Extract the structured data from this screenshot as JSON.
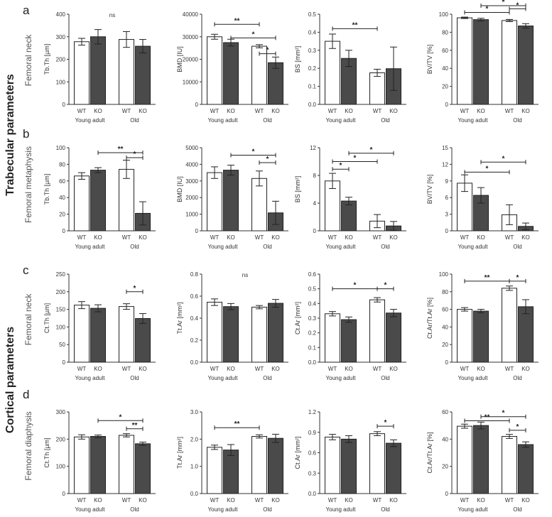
{
  "figure": {
    "group_labels": {
      "trabecular": "Trabecular parameters",
      "cortical": "Cortical parameters"
    },
    "panels": [
      {
        "letter": "a",
        "site": "Femoral neck"
      },
      {
        "letter": "b",
        "site": "Femoral metaphysis"
      },
      {
        "letter": "c",
        "site": "Femoral neck"
      },
      {
        "letter": "d",
        "site": "Femoral diaphysis"
      }
    ],
    "categories": [
      "WT",
      "KO",
      "WT",
      "KO"
    ],
    "age_groups": [
      "Young adult",
      "Old"
    ],
    "colors": {
      "wt": "#ffffff",
      "ko": "#4a4a4a",
      "axis": "#333333",
      "text": "#333333"
    }
  },
  "chart_data": [
    {
      "id": "a1",
      "type": "bar",
      "ylabel": "Tb.Th [µm]",
      "ylim": [
        0,
        400
      ],
      "yticks": [
        "0",
        "100",
        "200",
        "300",
        "400"
      ],
      "values": [
        278,
        300,
        288,
        258
      ],
      "errors": [
        15,
        32,
        35,
        30
      ],
      "annotations": [],
      "top_note": "ns"
    },
    {
      "id": "a2",
      "type": "bar",
      "ylabel": "BMD [IU]",
      "ylim": [
        0,
        40000
      ],
      "yticks": [
        "0",
        "10000",
        "20000",
        "30000",
        "40000"
      ],
      "values": [
        30000,
        27400,
        25800,
        18500
      ],
      "errors": [
        1100,
        1500,
        700,
        2500
      ],
      "annotations": [
        {
          "from": 0,
          "to": 2,
          "label": "**",
          "y": 35500
        },
        {
          "from": 1,
          "to": 3,
          "label": "*",
          "y": 29500
        },
        {
          "from": 2,
          "to": 3,
          "label": "*",
          "y": 22500
        }
      ]
    },
    {
      "id": "a3",
      "type": "bar",
      "ylabel": "BS [mm²]",
      "ylim": [
        0,
        0.5
      ],
      "yticks": [
        "0.0",
        "0.1",
        "0.2",
        "0.3",
        "0.4",
        "0.5"
      ],
      "values": [
        0.35,
        0.255,
        0.175,
        0.198
      ],
      "errors": [
        0.04,
        0.045,
        0.02,
        0.12
      ],
      "annotations": [
        {
          "from": 0,
          "to": 2,
          "label": "**",
          "y": 0.42
        }
      ]
    },
    {
      "id": "a4",
      "type": "bar",
      "ylabel": "BV/TV [%]",
      "ylim": [
        0,
        100
      ],
      "yticks": [
        "0",
        "20",
        "40",
        "60",
        "80",
        "100"
      ],
      "values": [
        96,
        94,
        93,
        87
      ],
      "errors": [
        0.8,
        1.5,
        1.2,
        2.5
      ],
      "annotations": [
        {
          "from": 0,
          "to": 2,
          "label": "*",
          "y": 102
        },
        {
          "from": 1,
          "to": 3,
          "label": "*",
          "y": 111
        },
        {
          "from": 2,
          "to": 3,
          "label": "*",
          "y": 106
        }
      ]
    },
    {
      "id": "b1",
      "type": "bar",
      "ylabel": "Tb.Th [µm]",
      "ylim": [
        0,
        100
      ],
      "yticks": [
        "0",
        "20",
        "40",
        "60",
        "80",
        "100"
      ],
      "values": [
        66,
        73,
        74,
        21
      ],
      "errors": [
        4,
        3,
        11,
        14
      ],
      "annotations": [
        {
          "from": 1,
          "to": 3,
          "label": "**",
          "y": 94
        },
        {
          "from": 2,
          "to": 3,
          "label": "*",
          "y": 88
        }
      ]
    },
    {
      "id": "b2",
      "type": "bar",
      "ylabel": "BMD [IU]",
      "ylim": [
        0,
        5000
      ],
      "yticks": [
        "0",
        "1000",
        "2000",
        "3000",
        "4000",
        "5000"
      ],
      "values": [
        3500,
        3650,
        3150,
        1080
      ],
      "errors": [
        350,
        300,
        450,
        700
      ],
      "annotations": [
        {
          "from": 1,
          "to": 3,
          "label": "*",
          "y": 4550
        },
        {
          "from": 2,
          "to": 3,
          "label": "*",
          "y": 4100
        }
      ]
    },
    {
      "id": "b3",
      "type": "bar",
      "ylabel": "BS [mm²]",
      "ylim": [
        0,
        12
      ],
      "yticks": [
        "0",
        "4",
        "8",
        "12"
      ],
      "values": [
        7.2,
        4.3,
        1.4,
        0.7
      ],
      "errors": [
        1.1,
        0.55,
        0.95,
        0.65
      ],
      "annotations": [
        {
          "from": 1,
          "to": 3,
          "label": "*",
          "y": 11.2
        },
        {
          "from": 0,
          "to": 2,
          "label": "*",
          "y": 10.0
        },
        {
          "from": 0,
          "to": 1,
          "label": "*",
          "y": 8.9
        }
      ]
    },
    {
      "id": "b4",
      "type": "bar",
      "ylabel": "BV/TV [%]",
      "ylim": [
        0,
        15
      ],
      "yticks": [
        "0",
        "3",
        "6",
        "9",
        "12",
        "15"
      ],
      "values": [
        8.6,
        6.4,
        2.9,
        0.8
      ],
      "errors": [
        1.5,
        1.4,
        1.8,
        0.6
      ],
      "annotations": [
        {
          "from": 1,
          "to": 3,
          "label": "*",
          "y": 12.4
        },
        {
          "from": 0,
          "to": 2,
          "label": "*",
          "y": 10.6
        }
      ]
    },
    {
      "id": "c1",
      "type": "bar",
      "ylabel": "Ct.Th [µm]",
      "ylim": [
        0,
        250
      ],
      "yticks": [
        "0",
        "50",
        "100",
        "150",
        "200",
        "250"
      ],
      "values": [
        162,
        153,
        158,
        124
      ],
      "errors": [
        10,
        10,
        8,
        14
      ],
      "annotations": [
        {
          "from": 2,
          "to": 3,
          "label": "*",
          "y": 200
        }
      ]
    },
    {
      "id": "c2",
      "type": "bar",
      "ylabel": "Tt.Ar [mm²]",
      "ylim": [
        0,
        0.8
      ],
      "yticks": [
        "0.0",
        "0.2",
        "0.4",
        "0.6",
        "0.8"
      ],
      "values": [
        0.545,
        0.505,
        0.5,
        0.535
      ],
      "errors": [
        0.03,
        0.028,
        0.015,
        0.035
      ],
      "annotations": [],
      "top_note": "ns"
    },
    {
      "id": "c3",
      "type": "bar",
      "ylabel": "Ct.Ar [mm²]",
      "ylim": [
        0,
        0.6
      ],
      "yticks": [
        "0.0",
        "0.1",
        "0.2",
        "0.3",
        "0.4",
        "0.5",
        "0.6"
      ],
      "values": [
        0.33,
        0.29,
        0.425,
        0.335
      ],
      "errors": [
        0.015,
        0.018,
        0.015,
        0.025
      ],
      "annotations": [
        {
          "from": 0,
          "to": 2,
          "label": "*",
          "y": 0.5
        },
        {
          "from": 2,
          "to": 3,
          "label": "*",
          "y": 0.5
        }
      ]
    },
    {
      "id": "c4",
      "type": "bar",
      "ylabel": "Ct.Ar/Tt.Ar [%]",
      "ylim": [
        0,
        100
      ],
      "yticks": [
        "0",
        "20",
        "40",
        "60",
        "80",
        "100"
      ],
      "values": [
        60,
        58,
        84,
        63
      ],
      "errors": [
        2,
        2,
        2.5,
        8
      ],
      "annotations": [
        {
          "from": 0,
          "to": 2,
          "label": "**",
          "y": 92
        },
        {
          "from": 2,
          "to": 3,
          "label": "*",
          "y": 92
        }
      ]
    },
    {
      "id": "d1",
      "type": "bar",
      "ylabel": "Ct.Th [µm]",
      "ylim": [
        0,
        300
      ],
      "yticks": [
        "0",
        "100",
        "200",
        "300"
      ],
      "values": [
        208,
        210,
        214,
        183
      ],
      "errors": [
        8,
        5,
        6,
        6
      ],
      "annotations": [
        {
          "from": 1,
          "to": 3,
          "label": "*",
          "y": 268
        },
        {
          "from": 2,
          "to": 3,
          "label": "**",
          "y": 238
        }
      ]
    },
    {
      "id": "d2",
      "type": "bar",
      "ylabel": "Tt.Ar [mm²]",
      "ylim": [
        0,
        3.0
      ],
      "yticks": [
        "0.0",
        "1.0",
        "2.0",
        "3.0"
      ],
      "values": [
        1.7,
        1.6,
        2.1,
        2.03
      ],
      "errors": [
        0.08,
        0.2,
        0.06,
        0.15
      ],
      "annotations": [
        {
          "from": 0,
          "to": 2,
          "label": "**",
          "y": 2.42
        }
      ]
    },
    {
      "id": "d3",
      "type": "bar",
      "ylabel": "Ct.Ar [mm²]",
      "ylim": [
        0,
        1.2
      ],
      "yticks": [
        "0.0",
        "0.3",
        "0.6",
        "0.9",
        "1.2"
      ],
      "values": [
        0.83,
        0.8,
        0.88,
        0.74
      ],
      "errors": [
        0.04,
        0.05,
        0.03,
        0.05
      ],
      "annotations": [
        {
          "from": 2,
          "to": 3,
          "label": "*",
          "y": 0.99
        }
      ]
    },
    {
      "id": "d4",
      "type": "bar",
      "ylabel": "Ct.Ar/Tt.Ar [%]",
      "ylim": [
        0,
        60
      ],
      "yticks": [
        "0",
        "20",
        "40",
        "60"
      ],
      "values": [
        49.5,
        50,
        42,
        36
      ],
      "errors": [
        1.5,
        2.5,
        1.5,
        2
      ],
      "annotations": [
        {
          "from": 1,
          "to": 3,
          "label": "*",
          "y": 56.5
        },
        {
          "from": 0,
          "to": 2,
          "label": "**",
          "y": 53.5
        },
        {
          "from": 2,
          "to": 3,
          "label": "*",
          "y": 46.5
        }
      ]
    }
  ]
}
